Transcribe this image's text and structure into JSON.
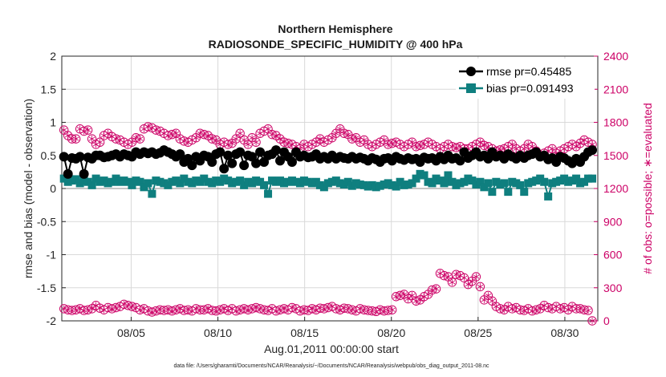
{
  "chart_data": {
    "type": "line",
    "title_line1": "Northern Hemisphere",
    "title_line2": "RADIOSONDE_SPECIFIC_HUMIDITY @ 400 hPa",
    "ylabel_left": "rmse and bias (model - observation)",
    "ylabel_right": "# of obs: o=possible; ∗=evaluated",
    "xlabel": "Aug.01,2011 00:00:00 start",
    "footnote": "data file: /Users/gharamti/Documents/NCAR/Reanalysis/~/Documents/NCAR/Reanalysis/webpub/obs_diag_output_2011-08.nc",
    "xlim": [
      1,
      31.9
    ],
    "ylim_left": [
      -2,
      2
    ],
    "ylim_right": [
      0,
      2400
    ],
    "left_ticks": [
      "-2",
      "-1.5",
      "-1",
      "-0.5",
      "0",
      "0.5",
      "1",
      "1.5",
      "2"
    ],
    "right_ticks": [
      "0",
      "300",
      "600",
      "900",
      "1200",
      "1500",
      "1800",
      "2100",
      "2400"
    ],
    "x_ticks": [
      {
        "value": 5,
        "label": "08/05"
      },
      {
        "value": 10,
        "label": "08/10"
      },
      {
        "value": 15,
        "label": "08/15"
      },
      {
        "value": 20,
        "label": "08/20"
      },
      {
        "value": 25,
        "label": "08/25"
      },
      {
        "value": 30,
        "label": "08/30"
      }
    ],
    "grid": true,
    "legend_position": "top-right",
    "colors": {
      "rmse": "#000000",
      "bias": "#0f7f7f",
      "obs": "#cc0066",
      "grid": "#d9d9d9"
    },
    "series": [
      {
        "name": "rmse pr=0.45485",
        "axis": "left",
        "color": "#000000",
        "values": [
          0.48,
          0.22,
          0.46,
          0.45,
          0.48,
          0.22,
          0.47,
          0.45,
          0.5,
          0.5,
          0.47,
          0.48,
          0.5,
          0.52,
          0.48,
          0.52,
          0.5,
          0.48,
          0.55,
          0.52,
          0.55,
          0.53,
          0.55,
          0.52,
          0.54,
          0.58,
          0.55,
          0.52,
          0.48,
          0.52,
          0.4,
          0.45,
          0.35,
          0.48,
          0.42,
          0.5,
          0.48,
          0.4,
          0.52,
          0.55,
          0.3,
          0.5,
          0.38,
          0.52,
          0.55,
          0.35,
          0.5,
          0.48,
          0.38,
          0.55,
          0.4,
          0.5,
          0.52,
          0.58,
          0.42,
          0.55,
          0.48,
          0.4,
          0.55,
          0.48,
          0.5,
          0.47,
          0.48,
          0.52,
          0.45,
          0.48,
          0.45,
          0.5,
          0.45,
          0.48,
          0.46,
          0.45,
          0.48,
          0.45,
          0.47,
          0.45,
          0.42,
          0.46,
          0.44,
          0.4,
          0.45,
          0.46,
          0.42,
          0.48,
          0.45,
          0.43,
          0.46,
          0.44,
          0.45,
          0.4,
          0.47,
          0.45,
          0.46,
          0.42,
          0.48,
          0.44,
          0.5,
          0.45,
          0.46,
          0.42,
          0.55,
          0.46,
          0.5,
          0.55,
          0.48,
          0.5,
          0.45,
          0.55,
          0.48,
          0.5,
          0.45,
          0.52,
          0.48,
          0.45,
          0.5,
          0.46,
          0.5,
          0.52,
          0.55,
          0.48,
          0.5,
          0.44,
          0.46,
          0.4,
          0.48,
          0.46,
          0.42,
          0.38,
          0.45,
          0.4,
          0.48,
          0.55,
          0.58
        ],
        "start_day": 1.125,
        "step_days": 0.2307
      },
      {
        "name": "bias pr=0.091493",
        "axis": "left",
        "color": "#0f7f7f",
        "values": [
          0.15,
          0.1,
          0.12,
          0.14,
          0.08,
          0.12,
          0.1,
          0.05,
          0.15,
          0.1,
          0.12,
          0.08,
          0.1,
          0.15,
          0.1,
          0.12,
          0.1,
          0.05,
          0.12,
          0.1,
          0.02,
          0.08,
          -0.08,
          0.12,
          0.1,
          0.08,
          0.05,
          0.1,
          0.12,
          0.08,
          0.15,
          0.1,
          0.08,
          0.12,
          0.1,
          0.15,
          0.1,
          0.08,
          0.12,
          0.1,
          0.15,
          0.12,
          0.08,
          0.1,
          0.12,
          0.05,
          0.1,
          0.08,
          0.12,
          0.1,
          0.05,
          -0.08,
          0.12,
          0.1,
          0.12,
          0.08,
          0.1,
          0.12,
          0.1,
          0.08,
          0.12,
          0.1,
          0.08,
          0.1,
          0.05,
          0.02,
          0.08,
          0.1,
          0.12,
          0.08,
          0.06,
          0.1,
          0.04,
          0.08,
          0.06,
          0.05,
          0.03,
          0.05,
          0.02,
          0.04,
          0.06,
          0.08,
          0.05,
          0.03,
          0.1,
          0.05,
          0.06,
          0.08,
          0.15,
          0.22,
          0.2,
          0.1,
          0.08,
          0.15,
          0.12,
          0.08,
          0.2,
          0.1,
          0.05,
          0.08,
          0.1,
          0.15,
          0.12,
          0.06,
          0.1,
          0.02,
          0.08,
          -0.05,
          0.1,
          0.06,
          0.08,
          -0.05,
          0.1,
          0.08,
          0.05,
          -0.05,
          0.08,
          0.1,
          0.12,
          0.15,
          0.1,
          -0.12,
          0.08,
          0.1,
          0.12,
          0.15,
          0.1,
          0.12,
          0.15,
          0.08,
          0.1,
          0.15,
          0.15
        ],
        "start_day": 1.125,
        "step_days": 0.2307
      },
      {
        "name": "possible",
        "axis": "right",
        "color": "#cc0066",
        "values": [
          1730,
          1680,
          1650,
          1650,
          1740,
          1720,
          1730,
          1650,
          1600,
          1620,
          1680,
          1700,
          1670,
          1650,
          1640,
          1620,
          1600,
          1620,
          1660,
          1650,
          1740,
          1760,
          1750,
          1730,
          1720,
          1700,
          1680,
          1690,
          1700,
          1650,
          1630,
          1620,
          1640,
          1660,
          1700,
          1690,
          1680,
          1650,
          1640,
          1600,
          1620,
          1600,
          1610,
          1650,
          1700,
          1640,
          1600,
          1660,
          1620,
          1700,
          1720,
          1740,
          1690,
          1680,
          1650,
          1620,
          1610,
          1600,
          1580,
          1560,
          1600,
          1580,
          1600,
          1620,
          1650,
          1620,
          1640,
          1660,
          1700,
          1740,
          1700,
          1690,
          1650,
          1660,
          1620,
          1640,
          1600,
          1580,
          1600,
          1620,
          1640,
          1600,
          1610,
          1620,
          1600,
          1580,
          1600,
          1620,
          1580,
          1590,
          1600,
          1620,
          1600,
          1580,
          1560,
          1580,
          1600,
          1580,
          1570,
          1580,
          1560,
          1560,
          1580,
          1600,
          1620,
          1590,
          1580,
          1560,
          1540,
          1550,
          1560,
          1580,
          1600,
          1560,
          1540,
          1560,
          1600,
          1580,
          1540,
          1500,
          1520,
          1540,
          1560,
          1520,
          1540,
          1560,
          1580,
          1600,
          1580,
          1610,
          1640,
          1620,
          1600
        ],
        "start_day": 1.125,
        "step_days": 0.2307
      },
      {
        "name": "evaluated",
        "axis": "right",
        "color": "#cc0066",
        "values": [
          110,
          100,
          95,
          100,
          110,
          95,
          100,
          110,
          140,
          115,
          100,
          120,
          110,
          120,
          130,
          150,
          140,
          130,
          120,
          100,
          110,
          90,
          80,
          90,
          100,
          95,
          100,
          90,
          100,
          110,
          95,
          100,
          90,
          110,
          100,
          100,
          110,
          95,
          90,
          100,
          110,
          95,
          110,
          90,
          100,
          110,
          100,
          110,
          120,
          110,
          100,
          95,
          110,
          90,
          100,
          110,
          100,
          120,
          110,
          90,
          100,
          95,
          110,
          100,
          115,
          110,
          120,
          130,
          110,
          100,
          115,
          110,
          100,
          90,
          110,
          100,
          95,
          90,
          85,
          100,
          90,
          95,
          100,
          220,
          230,
          240,
          200,
          230,
          180,
          190,
          220,
          240,
          280,
          290,
          430,
          410,
          400,
          350,
          420,
          410,
          390,
          330,
          360,
          400,
          310,
          190,
          230,
          180,
          130,
          110,
          100,
          130,
          110,
          120,
          100,
          95,
          110,
          90,
          100,
          110,
          140,
          120,
          110,
          130,
          110,
          120,
          100,
          130,
          110,
          110,
          100,
          95,
          0
        ],
        "start_day": 1.125,
        "step_days": 0.2307
      }
    ]
  }
}
